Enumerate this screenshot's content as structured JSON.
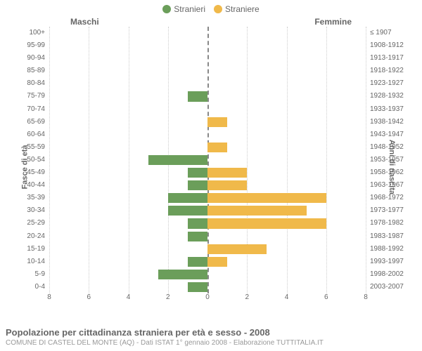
{
  "legend": {
    "male": {
      "label": "Stranieri",
      "color": "#6b9e5a"
    },
    "female": {
      "label": "Straniere",
      "color": "#f0b94a"
    }
  },
  "headers": {
    "left": "Maschi",
    "right": "Femmine"
  },
  "axisTitles": {
    "left": "Fasce di età",
    "right": "Anni di nascita"
  },
  "chart": {
    "type": "population-pyramid",
    "xlim": 8,
    "xticks": [
      8,
      6,
      4,
      2,
      0,
      2,
      4,
      6,
      8
    ],
    "grid_color": "#cccccc",
    "axis_color": "#888888",
    "background_color": "#ffffff",
    "bar_color_m": "#6b9e5a",
    "bar_color_f": "#f0b94a",
    "label_fontsize": 10,
    "rows": [
      {
        "age": "100+",
        "birth": "≤ 1907",
        "m": 0,
        "f": 0
      },
      {
        "age": "95-99",
        "birth": "1908-1912",
        "m": 0,
        "f": 0
      },
      {
        "age": "90-94",
        "birth": "1913-1917",
        "m": 0,
        "f": 0
      },
      {
        "age": "85-89",
        "birth": "1918-1922",
        "m": 0,
        "f": 0
      },
      {
        "age": "80-84",
        "birth": "1923-1927",
        "m": 0,
        "f": 0
      },
      {
        "age": "75-79",
        "birth": "1928-1932",
        "m": 1,
        "f": 0
      },
      {
        "age": "70-74",
        "birth": "1933-1937",
        "m": 0,
        "f": 0
      },
      {
        "age": "65-69",
        "birth": "1938-1942",
        "m": 0,
        "f": 1
      },
      {
        "age": "60-64",
        "birth": "1943-1947",
        "m": 0,
        "f": 0
      },
      {
        "age": "55-59",
        "birth": "1948-1952",
        "m": 0,
        "f": 1
      },
      {
        "age": "50-54",
        "birth": "1953-1957",
        "m": 3,
        "f": 0
      },
      {
        "age": "45-49",
        "birth": "1958-1962",
        "m": 1,
        "f": 2
      },
      {
        "age": "40-44",
        "birth": "1963-1967",
        "m": 1,
        "f": 2
      },
      {
        "age": "35-39",
        "birth": "1968-1972",
        "m": 2,
        "f": 6
      },
      {
        "age": "30-34",
        "birth": "1973-1977",
        "m": 2,
        "f": 5
      },
      {
        "age": "25-29",
        "birth": "1978-1982",
        "m": 1,
        "f": 6
      },
      {
        "age": "20-24",
        "birth": "1983-1987",
        "m": 1,
        "f": 0
      },
      {
        "age": "15-19",
        "birth": "1988-1992",
        "m": 0,
        "f": 3
      },
      {
        "age": "10-14",
        "birth": "1993-1997",
        "m": 1,
        "f": 1
      },
      {
        "age": "5-9",
        "birth": "1998-2002",
        "m": 2.5,
        "f": 0
      },
      {
        "age": "0-4",
        "birth": "2003-2007",
        "m": 1,
        "f": 0
      }
    ]
  },
  "footer": {
    "title": "Popolazione per cittadinanza straniera per età e sesso - 2008",
    "subtitle": "COMUNE DI CASTEL DEL MONTE (AQ) - Dati ISTAT 1° gennaio 2008 - Elaborazione TUTTITALIA.IT"
  }
}
